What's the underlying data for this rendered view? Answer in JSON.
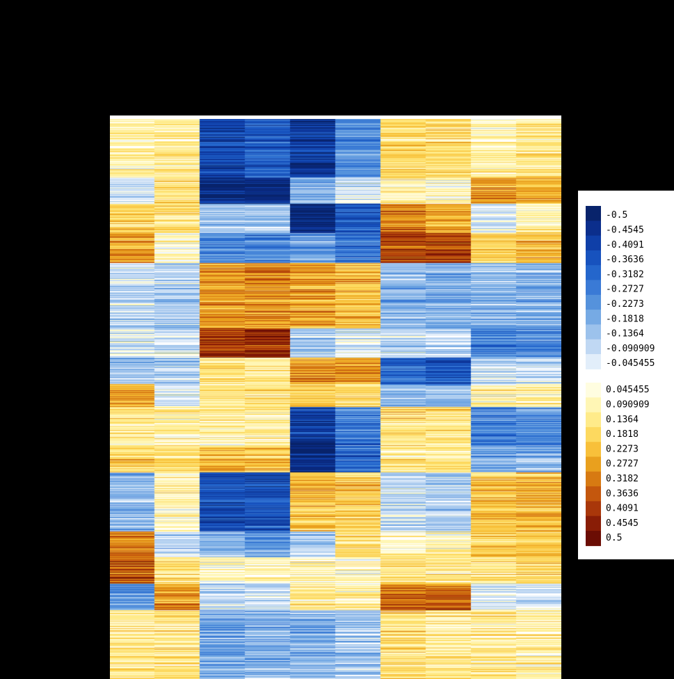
{
  "chart_data": {
    "type": "heatmap",
    "title": "",
    "xlabel": "",
    "ylabel": "",
    "n_columns": 10,
    "color_range": [
      -0.5,
      0.5
    ],
    "legend_placement": "right",
    "legend": {
      "negative_labels": [
        "-0.5",
        "-0.4545",
        "-0.4091",
        "-0.3636",
        "-0.3182",
        "-0.2727",
        "-0.2273",
        "-0.1818",
        "-0.1364",
        "-0.090909",
        "-0.045455"
      ],
      "positive_labels": [
        "0.045455",
        "0.090909",
        "0.1364",
        "0.1818",
        "0.2273",
        "0.2727",
        "0.3182",
        "0.3636",
        "0.4091",
        "0.4545",
        "0.5"
      ],
      "negative_colors": [
        "#08236b",
        "#0b2e8c",
        "#0f3fa8",
        "#1752be",
        "#2466cc",
        "#3a7ad6",
        "#5592dc",
        "#76aae4",
        "#9cc2ec",
        "#c0d8f3",
        "#e2eefa"
      ],
      "positive_colors": [
        "#fffde0",
        "#fff6b5",
        "#ffeb8a",
        "#fdd95f",
        "#f8c03a",
        "#e9a01e",
        "#d77a12",
        "#c4570d",
        "#a9370a",
        "#891d06",
        "#6b0d04"
      ]
    },
    "row_blocks": [
      {
        "rows": 90,
        "values": [
          0.07,
          0.09,
          -0.38,
          -0.32,
          -0.42,
          -0.22,
          0.13,
          0.14,
          0.06,
          0.1
        ]
      },
      {
        "rows": 40,
        "values": [
          -0.06,
          0.12,
          -0.46,
          -0.46,
          -0.14,
          -0.06,
          0.07,
          0.04,
          0.24,
          0.22
        ]
      },
      {
        "rows": 45,
        "values": [
          0.18,
          0.14,
          -0.1,
          -0.1,
          -0.46,
          -0.32,
          0.3,
          0.25,
          -0.04,
          0.08
        ]
      },
      {
        "rows": 45,
        "values": [
          0.25,
          0.04,
          -0.22,
          -0.24,
          -0.18,
          -0.26,
          0.36,
          0.38,
          0.16,
          0.2
        ]
      },
      {
        "rows": 100,
        "values": [
          -0.06,
          -0.08,
          0.26,
          0.28,
          0.24,
          0.2,
          -0.12,
          -0.14,
          -0.12,
          -0.14
        ]
      },
      {
        "rows": 45,
        "values": [
          -0.04,
          -0.04,
          0.4,
          0.4,
          -0.1,
          -0.04,
          -0.06,
          -0.06,
          -0.24,
          -0.22
        ]
      },
      {
        "rows": 40,
        "values": [
          -0.1,
          -0.08,
          0.14,
          0.1,
          0.28,
          0.26,
          -0.28,
          -0.32,
          -0.06,
          -0.04
        ]
      },
      {
        "rows": 35,
        "values": [
          0.22,
          -0.04,
          0.1,
          0.12,
          0.18,
          0.14,
          -0.16,
          -0.14,
          0.06,
          0.08
        ]
      },
      {
        "rows": 60,
        "values": [
          0.1,
          0.08,
          0.08,
          0.1,
          -0.4,
          -0.24,
          0.14,
          0.12,
          -0.24,
          -0.2
        ]
      },
      {
        "rows": 40,
        "values": [
          0.16,
          0.14,
          0.2,
          0.18,
          -0.46,
          -0.3,
          0.1,
          0.1,
          -0.16,
          -0.14
        ]
      },
      {
        "rows": 90,
        "values": [
          -0.12,
          0.08,
          -0.34,
          -0.34,
          0.2,
          0.18,
          -0.06,
          -0.08,
          0.2,
          0.22
        ]
      },
      {
        "rows": 40,
        "values": [
          0.28,
          -0.08,
          -0.16,
          -0.2,
          -0.1,
          0.12,
          0.04,
          0.06,
          0.16,
          0.16
        ]
      },
      {
        "rows": 40,
        "values": [
          0.34,
          0.12,
          0.06,
          0.04,
          0.04,
          0.04,
          0.1,
          0.1,
          0.1,
          0.14
        ]
      },
      {
        "rows": 40,
        "values": [
          -0.2,
          0.26,
          -0.06,
          -0.06,
          0.1,
          0.08,
          0.3,
          0.32,
          -0.04,
          -0.06
        ]
      },
      {
        "rows": 105,
        "values": [
          0.1,
          0.12,
          -0.16,
          -0.14,
          -0.14,
          -0.1,
          0.14,
          0.1,
          0.1,
          0.08
        ]
      }
    ]
  }
}
